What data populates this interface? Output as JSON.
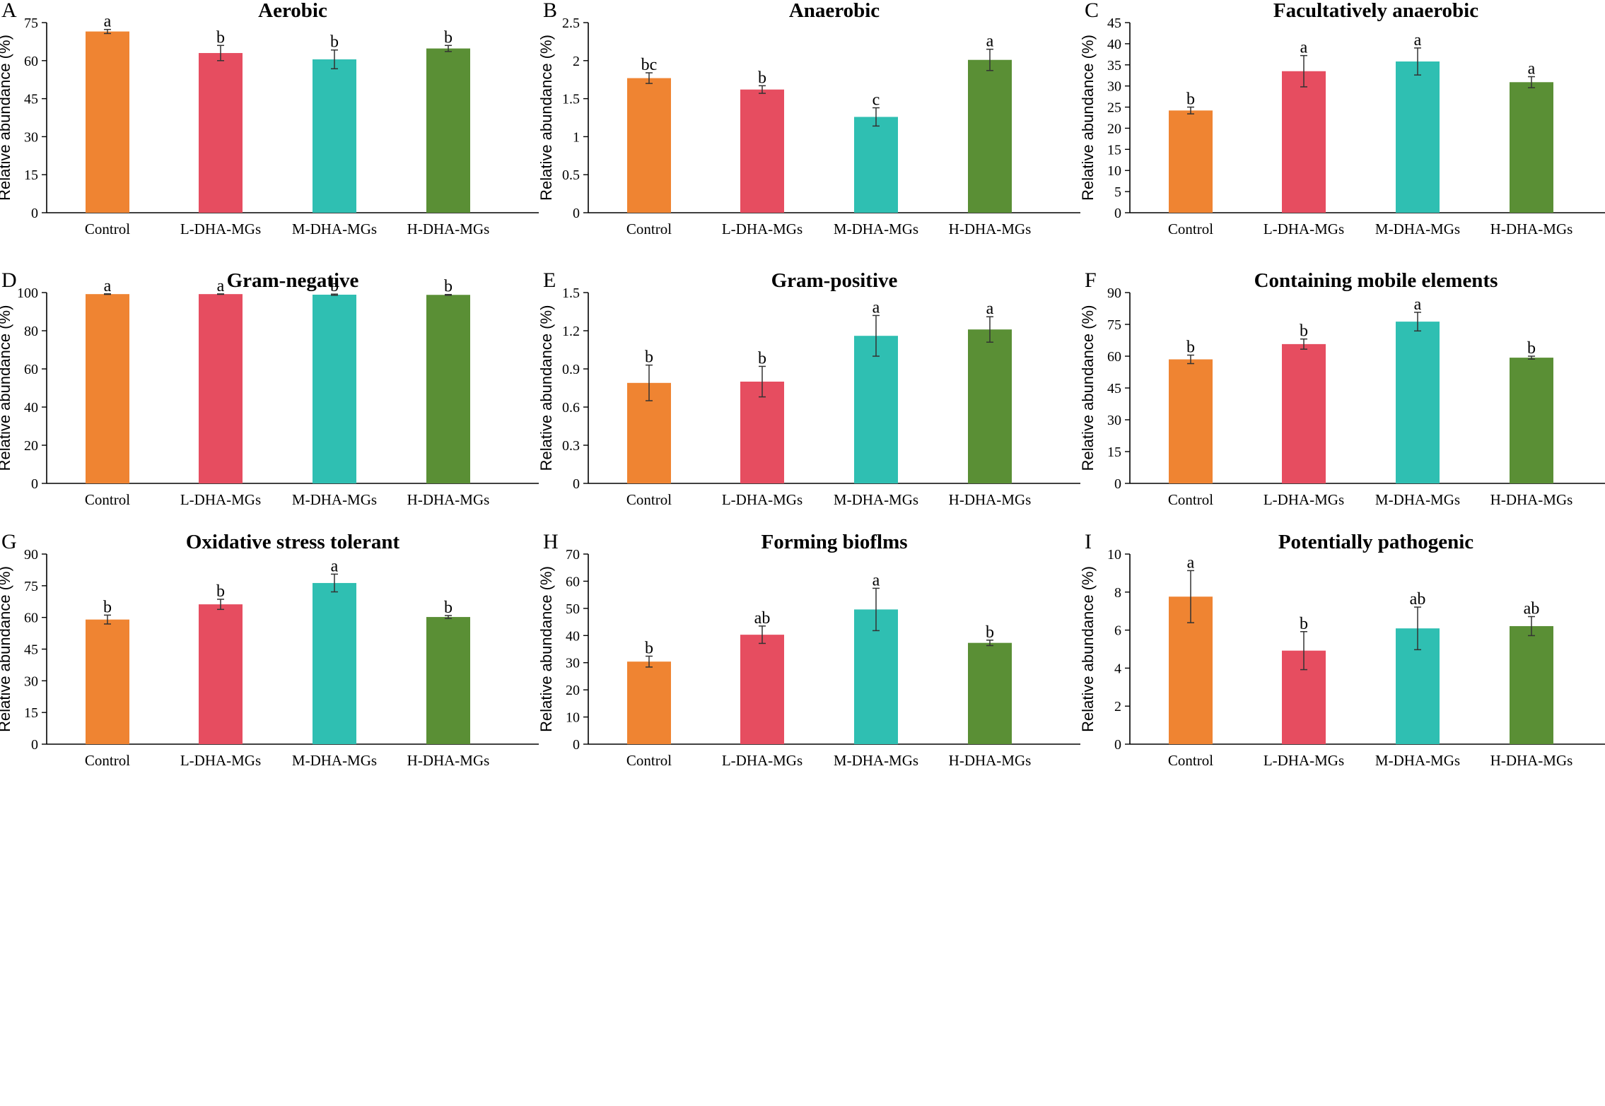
{
  "figure": {
    "group_colors": [
      "#ef8432",
      "#e64d60",
      "#2fbfb2",
      "#5a8f35"
    ],
    "axis_color": "#000000"
  },
  "chart_data": [
    {
      "panel": "A",
      "type": "bar",
      "title": "Aerobic",
      "ylabel": "Relative abundance (%)",
      "xlabel": "",
      "categories": [
        "Control",
        "L-DHA-MGs",
        "M-DHA-MGs",
        "H-DHA-MGs"
      ],
      "values": [
        71.5,
        63.0,
        60.5,
        64.8
      ],
      "errors": [
        0.8,
        3.0,
        3.7,
        1.2
      ],
      "labels": [
        "a",
        "b",
        "b",
        "b"
      ],
      "ylim": [
        0,
        75
      ],
      "yticks": [
        0,
        15,
        30,
        45,
        60,
        75
      ],
      "ytick_labels": [
        "0",
        "15",
        "30",
        "45",
        "60",
        "75"
      ]
    },
    {
      "panel": "B",
      "type": "bar",
      "title": "Anaerobic",
      "ylabel": "Relative abundance (%)",
      "xlabel": "",
      "categories": [
        "Control",
        "L-DHA-MGs",
        "M-DHA-MGs",
        "H-DHA-MGs"
      ],
      "values": [
        1.77,
        1.62,
        1.26,
        2.01
      ],
      "errors": [
        0.07,
        0.05,
        0.12,
        0.14
      ],
      "labels": [
        "bc",
        "b",
        "c",
        "a"
      ],
      "ylim": [
        0,
        2.5
      ],
      "yticks": [
        0,
        0.5,
        1,
        1.5,
        2,
        2.5
      ],
      "ytick_labels": [
        "0",
        "0.5",
        "1",
        "1.5",
        "2",
        "2.5"
      ]
    },
    {
      "panel": "C",
      "type": "bar",
      "title": "Facultatively anaerobic",
      "ylabel": "Relative abundance (%)",
      "xlabel": "",
      "categories": [
        "Control",
        "L-DHA-MGs",
        "M-DHA-MGs",
        "H-DHA-MGs"
      ],
      "values": [
        24.2,
        33.5,
        35.8,
        30.9
      ],
      "errors": [
        0.8,
        3.7,
        3.2,
        1.3
      ],
      "labels": [
        "b",
        "a",
        "a",
        "a"
      ],
      "ylim": [
        0,
        45
      ],
      "yticks": [
        0,
        5,
        10,
        15,
        20,
        25,
        30,
        35,
        40,
        45
      ],
      "ytick_labels": [
        "0",
        "5",
        "10",
        "15",
        "20",
        "25",
        "30",
        "35",
        "40",
        "45"
      ]
    },
    {
      "panel": "D",
      "type": "bar",
      "title": "Gram-negative",
      "ylabel": "Relative abundance (%)",
      "xlabel": "",
      "categories": [
        "Control",
        "L-DHA-MGs",
        "M-DHA-MGs",
        "H-DHA-MGs"
      ],
      "values": [
        99.2,
        99.2,
        98.9,
        98.8
      ],
      "errors": [
        0.15,
        0.12,
        0.3,
        0.2
      ],
      "labels": [
        "a",
        "a",
        "b",
        "b"
      ],
      "ylim": [
        0,
        100
      ],
      "yticks": [
        0,
        20,
        40,
        60,
        80,
        100
      ],
      "ytick_labels": [
        "0",
        "20",
        "40",
        "60",
        "80",
        "100"
      ]
    },
    {
      "panel": "E",
      "type": "bar",
      "title": "Gram-positive",
      "ylabel": "Relative abundance (%)",
      "xlabel": "",
      "categories": [
        "Control",
        "L-DHA-MGs",
        "M-DHA-MGs",
        "H-DHA-MGs"
      ],
      "values": [
        0.79,
        0.8,
        1.16,
        1.21
      ],
      "errors": [
        0.14,
        0.12,
        0.16,
        0.1
      ],
      "labels": [
        "b",
        "b",
        "a",
        "a"
      ],
      "ylim": [
        0,
        1.5
      ],
      "yticks": [
        0,
        0.3,
        0.6,
        0.9,
        1.2,
        1.5
      ],
      "ytick_labels": [
        "0",
        "0.3",
        "0.6",
        "0.9",
        "1.2",
        "1.5"
      ]
    },
    {
      "panel": "F",
      "type": "bar",
      "title": "Containing mobile elements",
      "ylabel": "Relative abundance (%)",
      "xlabel": "",
      "categories": [
        "Control",
        "L-DHA-MGs",
        "M-DHA-MGs",
        "H-DHA-MGs"
      ],
      "values": [
        58.5,
        65.7,
        76.3,
        59.3
      ],
      "errors": [
        2.0,
        2.4,
        4.4,
        0.7
      ],
      "labels": [
        "b",
        "b",
        "a",
        "b"
      ],
      "ylim": [
        0,
        90
      ],
      "yticks": [
        0,
        15,
        30,
        45,
        60,
        75,
        90
      ],
      "ytick_labels": [
        "0",
        "15",
        "30",
        "45",
        "60",
        "75",
        "90"
      ]
    },
    {
      "panel": "G",
      "type": "bar",
      "title": "Oxidative stress tolerant",
      "ylabel": "Relative abundance (%)",
      "xlabel": "",
      "categories": [
        "Control",
        "L-DHA-MGs",
        "M-DHA-MGs",
        "H-DHA-MGs"
      ],
      "values": [
        59.0,
        66.2,
        76.3,
        60.2
      ],
      "errors": [
        2.1,
        2.4,
        4.2,
        0.7
      ],
      "labels": [
        "b",
        "b",
        "a",
        "b"
      ],
      "ylim": [
        0,
        90
      ],
      "yticks": [
        0,
        15,
        30,
        45,
        60,
        75,
        90
      ],
      "ytick_labels": [
        "0",
        "15",
        "30",
        "45",
        "60",
        "75",
        "90"
      ]
    },
    {
      "panel": "H",
      "type": "bar",
      "title": "Forming bioflms",
      "ylabel": "Relative abundance (%)",
      "xlabel": "",
      "categories": [
        "Control",
        "L-DHA-MGs",
        "M-DHA-MGs",
        "H-DHA-MGs"
      ],
      "values": [
        30.4,
        40.3,
        49.6,
        37.3
      ],
      "errors": [
        2.0,
        3.2,
        7.8,
        1.0
      ],
      "labels": [
        "b",
        "ab",
        "a",
        "b"
      ],
      "ylim": [
        0,
        70
      ],
      "yticks": [
        0,
        10,
        20,
        30,
        40,
        50,
        60,
        70
      ],
      "ytick_labels": [
        "0",
        "10",
        "20",
        "30",
        "40",
        "50",
        "60",
        "70"
      ]
    },
    {
      "panel": "I",
      "type": "bar",
      "title": "Potentially pathogenic",
      "ylabel": "Relative abundance (%)",
      "xlabel": "",
      "categories": [
        "Control",
        "L-DHA-MGs",
        "M-DHA-MGs",
        "H-DHA-MGs"
      ],
      "values": [
        7.76,
        4.92,
        6.09,
        6.21
      ],
      "errors": [
        1.37,
        1.0,
        1.12,
        0.5
      ],
      "labels": [
        "a",
        "b",
        "ab",
        "ab"
      ],
      "ylim": [
        0,
        10
      ],
      "yticks": [
        0,
        2,
        4,
        6,
        8,
        10
      ],
      "ytick_labels": [
        "0",
        "2",
        "4",
        "6",
        "8",
        "10"
      ]
    }
  ]
}
